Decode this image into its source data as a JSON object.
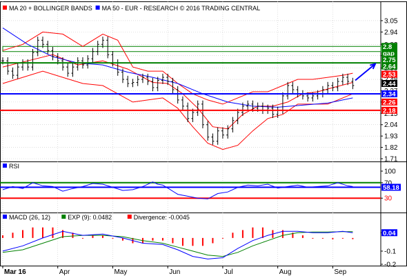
{
  "colors": {
    "price": "#000000",
    "ma20": "#ff0000",
    "bollinger": "#ff0000",
    "ma50": "#0000ff",
    "support_blue": "#0000ff",
    "support_red": "#ff0000",
    "resistance_green": "#008000",
    "rsi_line": "#0000ff",
    "macd_line": "#0000ff",
    "signal_line": "#008000",
    "divergence": "#ff0000",
    "grid": "#c8c8c8"
  },
  "chart_data": [
    {
      "type": "line",
      "panel": "price",
      "legend": [
        {
          "label": "MA 20 + BOLLINGER BANDS",
          "color": "#ff0000"
        },
        {
          "label": "MA 50 - EUR - RESEARCH © 2016 TRADING CENTRAL",
          "color": "#0000ff"
        }
      ],
      "x_labels": [
        "Mar 16",
        "Apr",
        "May",
        "Jun",
        "Jul",
        "Aug",
        "Sep"
      ],
      "x_label_day": [
        0,
        22,
        44,
        66,
        88,
        110,
        132
      ],
      "y_ticks": [
        3.05,
        2.94,
        2.82,
        2.71,
        2.59,
        2.48,
        2.37,
        2.26,
        2.15,
        2.04,
        1.93,
        1.82,
        1.71
      ],
      "ylim": [
        1.71,
        3.13
      ],
      "xlim": [
        0,
        141
      ],
      "grid": true,
      "levels": [
        {
          "value": 2.8,
          "color": "#008000",
          "label": "2.8",
          "draw_line": false,
          "label_text": "#ffffff"
        },
        {
          "value": 2.75,
          "color": "#008000",
          "label": "gap",
          "draw_line": false,
          "label_text": "#ffffff"
        },
        {
          "value": 2.75,
          "color": "#008000",
          "label": "2.75",
          "draw_line": false,
          "label_text": "#ffffff"
        },
        {
          "value": 2.64,
          "color": "#008000",
          "label": "2.64",
          "draw_line": true,
          "label_text": "#ffffff"
        },
        {
          "value": 2.53,
          "color": "#ff0000",
          "label": "2.53",
          "draw_line": false,
          "label_text": "#ffffff"
        },
        {
          "value": 2.44,
          "color": "#000000",
          "label": "2.44",
          "draw_line": false,
          "label_text": "#ffffff"
        },
        {
          "value": 2.34,
          "color": "#0000ff",
          "label": "2.34",
          "draw_line": true,
          "label_text": "#ffffff"
        },
        {
          "value": 2.26,
          "color": "#ff0000",
          "label": "2.26",
          "draw_line": false,
          "label_text": "#ffffff"
        },
        {
          "value": 2.18,
          "color": "#ff0000",
          "label": "2.18",
          "draw_line": true,
          "label_text": "#ffffff"
        }
      ],
      "gap_band": {
        "low": 2.75,
        "high": 2.8
      },
      "arrow": {
        "from": [
          141,
          2.47
        ],
        "to": [
          149,
          2.63
        ]
      },
      "price": {
        "x": [
          0,
          2,
          4,
          6,
          8,
          10,
          12,
          14,
          16,
          18,
          20,
          22,
          24,
          26,
          28,
          30,
          32,
          34,
          36,
          38,
          40,
          42,
          44,
          46,
          48,
          50,
          52,
          54,
          56,
          58,
          60,
          62,
          64,
          66,
          68,
          70,
          72,
          74,
          76,
          78,
          80,
          82,
          84,
          86,
          88,
          90,
          92,
          94,
          96,
          98,
          100,
          102,
          104,
          106,
          108,
          110,
          112,
          114,
          116,
          118,
          120,
          122,
          124,
          126,
          128,
          130,
          132,
          134,
          136,
          138,
          140
        ],
        "y": [
          2.66,
          2.56,
          2.52,
          2.6,
          2.64,
          2.6,
          2.74,
          2.86,
          2.82,
          2.76,
          2.7,
          2.66,
          2.6,
          2.54,
          2.6,
          2.66,
          2.62,
          2.68,
          2.75,
          2.82,
          2.86,
          2.72,
          2.64,
          2.55,
          2.48,
          2.44,
          2.45,
          2.48,
          2.5,
          2.46,
          2.4,
          2.47,
          2.5,
          2.46,
          2.38,
          2.28,
          2.22,
          2.1,
          2.16,
          2.24,
          2.04,
          1.92,
          1.88,
          1.98,
          1.94,
          2.0,
          2.08,
          2.16,
          2.22,
          2.24,
          2.2,
          2.22,
          2.18,
          2.2,
          2.14,
          2.18,
          2.32,
          2.42,
          2.38,
          2.34,
          2.32,
          2.3,
          2.32,
          2.34,
          2.38,
          2.42,
          2.4,
          2.46,
          2.5,
          2.46,
          2.42
        ]
      },
      "ma20": {
        "x": [
          0,
          10,
          20,
          30,
          40,
          50,
          60,
          66,
          72,
          78,
          84,
          90,
          96,
          102,
          108,
          114,
          120,
          126,
          132,
          140
        ],
        "y": [
          2.6,
          2.66,
          2.72,
          2.62,
          2.66,
          2.58,
          2.45,
          2.44,
          2.34,
          2.2,
          2.02,
          2.0,
          2.14,
          2.22,
          2.22,
          2.26,
          2.34,
          2.36,
          2.4,
          2.45
        ]
      },
      "ma50": {
        "x": [
          0,
          10,
          20,
          30,
          40,
          50,
          60,
          70,
          80,
          90,
          100,
          110,
          120,
          130,
          140
        ],
        "y": [
          2.98,
          2.82,
          2.7,
          2.64,
          2.62,
          2.55,
          2.5,
          2.44,
          2.34,
          2.26,
          2.22,
          2.21,
          2.23,
          2.25,
          2.3
        ]
      },
      "boll_upper": {
        "x": [
          0,
          8,
          16,
          24,
          32,
          40,
          46,
          52,
          58,
          64,
          70,
          76,
          82,
          88,
          94,
          100,
          106,
          112,
          118,
          124,
          130,
          136,
          140
        ],
        "y": [
          2.76,
          2.82,
          2.94,
          2.92,
          2.8,
          2.92,
          2.86,
          2.6,
          2.56,
          2.56,
          2.44,
          2.34,
          2.28,
          2.24,
          2.3,
          2.36,
          2.36,
          2.42,
          2.48,
          2.48,
          2.5,
          2.52,
          2.54
        ]
      },
      "boll_lower": {
        "x": [
          0,
          8,
          16,
          24,
          32,
          40,
          46,
          52,
          58,
          64,
          70,
          76,
          82,
          88,
          94,
          100,
          106,
          112,
          118,
          124,
          130,
          136,
          140
        ],
        "y": [
          2.44,
          2.5,
          2.56,
          2.5,
          2.44,
          2.42,
          2.34,
          2.26,
          2.28,
          2.3,
          2.2,
          2.02,
          1.86,
          1.8,
          1.84,
          1.98,
          2.1,
          2.14,
          2.24,
          2.24,
          2.24,
          2.3,
          2.34
        ]
      }
    },
    {
      "type": "line",
      "panel": "rsi",
      "legend": [
        {
          "label": "RSI",
          "color": "#0000ff"
        }
      ],
      "y_ticks": [
        100,
        70,
        30
      ],
      "ylim": [
        0,
        100
      ],
      "xlim": [
        0,
        141
      ],
      "levels": [
        {
          "value": 70,
          "color": "#008000",
          "label": "",
          "draw_line": true
        },
        {
          "value": 58.18,
          "color": "#0000ff",
          "label": "58.18",
          "draw_line": true,
          "label_text": "#ffffff"
        },
        {
          "value": 30,
          "color": "#ff0000",
          "label": "",
          "draw_line": true
        }
      ],
      "series": {
        "x": [
          0,
          4,
          8,
          12,
          16,
          20,
          24,
          28,
          32,
          36,
          40,
          44,
          48,
          52,
          56,
          60,
          62,
          64,
          66,
          70,
          74,
          78,
          82,
          86,
          90,
          94,
          98,
          102,
          106,
          110,
          114,
          118,
          122,
          126,
          130,
          134,
          138,
          140
        ],
        "y": [
          52,
          60,
          55,
          70,
          62,
          60,
          48,
          55,
          60,
          68,
          66,
          58,
          50,
          52,
          60,
          72,
          66,
          64,
          56,
          40,
          35,
          30,
          28,
          42,
          46,
          58,
          64,
          62,
          66,
          56,
          60,
          64,
          58,
          60,
          62,
          70,
          62,
          60
        ]
      }
    },
    {
      "type": "line",
      "panel": "macd",
      "legend": [
        {
          "label": "MACD (26, 12)",
          "color": "#0000ff"
        },
        {
          "label": "EXP (9): 0.0482",
          "color": "#008000"
        },
        {
          "label": "Divergence: -0.0045",
          "color": "#ff0000"
        }
      ],
      "y_ticks": [
        0.04,
        -0.1,
        -0.2
      ],
      "ylim": [
        -0.2,
        0.12
      ],
      "xlim": [
        0,
        141
      ],
      "levels": [
        {
          "value": 0.04,
          "color": "#0000ff",
          "label": "0.04",
          "draw_line": false,
          "label_text": "#ffffff"
        }
      ],
      "macd": {
        "x": [
          0,
          8,
          16,
          24,
          32,
          40,
          48,
          56,
          64,
          70,
          76,
          82,
          88,
          94,
          100,
          106,
          112,
          118,
          124,
          130,
          136,
          140
        ],
        "y": [
          -0.1,
          -0.06,
          0.0,
          0.05,
          0.02,
          0.03,
          0.0,
          -0.04,
          -0.05,
          -0.09,
          -0.14,
          -0.16,
          -0.15,
          -0.08,
          -0.02,
          0.02,
          0.05,
          0.05,
          0.04,
          0.04,
          0.05,
          0.04
        ]
      },
      "signal": {
        "x": [
          0,
          8,
          16,
          24,
          32,
          40,
          48,
          56,
          64,
          70,
          76,
          82,
          88,
          94,
          100,
          106,
          112,
          118,
          124,
          130,
          136,
          140
        ],
        "y": [
          -0.11,
          -0.09,
          -0.04,
          0.01,
          0.02,
          0.02,
          0.01,
          -0.02,
          -0.04,
          -0.07,
          -0.1,
          -0.13,
          -0.14,
          -0.11,
          -0.06,
          -0.02,
          0.02,
          0.04,
          0.045,
          0.045,
          0.048,
          0.048
        ]
      },
      "divergence": {
        "x": [
          0,
          4,
          8,
          12,
          16,
          20,
          24,
          28,
          32,
          36,
          40,
          44,
          48,
          52,
          56,
          60,
          64,
          68,
          72,
          76,
          80,
          84,
          88,
          92,
          96,
          100,
          104,
          108,
          112,
          116,
          120,
          124,
          128,
          132,
          136,
          140
        ],
        "y": [
          0.01,
          0.02,
          0.03,
          0.04,
          0.04,
          0.04,
          0.03,
          0.02,
          0.0,
          0.01,
          0.01,
          0.0,
          -0.01,
          -0.02,
          -0.02,
          -0.01,
          -0.01,
          -0.02,
          -0.03,
          -0.03,
          -0.03,
          -0.02,
          0.0,
          0.02,
          0.03,
          0.04,
          0.04,
          0.03,
          0.03,
          0.02,
          0.01,
          0.0,
          0.0,
          -0.005,
          0.0,
          -0.0045
        ]
      }
    }
  ]
}
